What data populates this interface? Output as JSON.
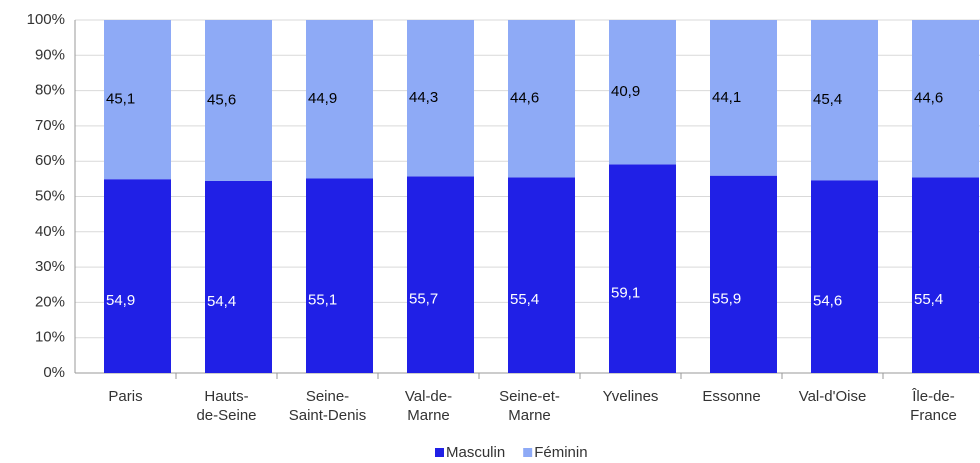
{
  "chart_data": {
    "type": "stacked_bar",
    "categories": [
      "Paris",
      "Hauts-\nde-Seine",
      "Seine-\nSaint-Denis",
      "Val-de-\nMarne",
      "Seine-et-\nMarne",
      "Yvelines",
      "Essonne",
      "Val-d'Oise",
      "Île-de-\nFrance"
    ],
    "series": [
      {
        "name": "Masculin",
        "color": "#2020e6",
        "label_color": "#ffffff",
        "values": [
          54.9,
          54.4,
          55.1,
          55.7,
          55.4,
          59.1,
          55.9,
          54.6,
          55.4
        ],
        "value_labels": [
          "54,9",
          "54,4",
          "55,1",
          "55,7",
          "55,4",
          "59,1",
          "55,9",
          "54,6",
          "55,4"
        ]
      },
      {
        "name": "Féminin",
        "color": "#8eaaf6",
        "label_color": "#000000",
        "values": [
          45.1,
          45.6,
          44.9,
          44.3,
          44.6,
          40.9,
          44.1,
          45.4,
          44.6
        ],
        "value_labels": [
          "45,1",
          "45,6",
          "44,9",
          "44,3",
          "44,6",
          "40,9",
          "44,1",
          "45,4",
          "44,6"
        ]
      }
    ],
    "ylim": [
      0,
      100
    ],
    "yticks": [
      {
        "value": 0,
        "label": "0%"
      },
      {
        "value": 10,
        "label": "10%"
      },
      {
        "value": 20,
        "label": "20%"
      },
      {
        "value": 30,
        "label": "30%"
      },
      {
        "value": 40,
        "label": "40%"
      },
      {
        "value": 50,
        "label": "50%"
      },
      {
        "value": 60,
        "label": "60%"
      },
      {
        "value": 70,
        "label": "70%"
      },
      {
        "value": 80,
        "label": "80%"
      },
      {
        "value": 90,
        "label": "90%"
      },
      {
        "value": 100,
        "label": "100%"
      }
    ],
    "grid": true,
    "legend": "bottom"
  }
}
